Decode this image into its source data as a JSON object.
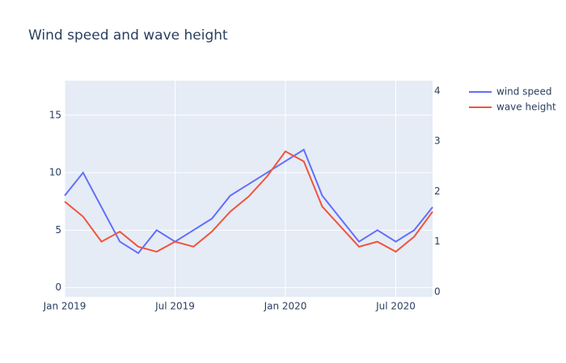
{
  "chart_data": {
    "type": "line",
    "title": "Wind speed and wave height",
    "x": [
      "2019-01",
      "2019-02",
      "2019-03",
      "2019-04",
      "2019-05",
      "2019-06",
      "2019-07",
      "2019-08",
      "2019-09",
      "2019-10",
      "2019-11",
      "2019-12",
      "2020-01",
      "2020-02",
      "2020-03",
      "2020-04",
      "2020-05",
      "2020-06",
      "2020-07",
      "2020-08",
      "2020-09"
    ],
    "series": [
      {
        "name": "wind speed",
        "color": "#636efa",
        "values": [
          8,
          10,
          7,
          4,
          3,
          5,
          4,
          5,
          6,
          8,
          9,
          10,
          11,
          12,
          8,
          6,
          4,
          5,
          4,
          5,
          7
        ]
      },
      {
        "name": "wave height",
        "color": "#ef553b",
        "axis": "y2",
        "values": [
          1.8,
          1.5,
          1.0,
          1.2,
          0.9,
          0.8,
          1.0,
          0.9,
          1.2,
          1.6,
          1.9,
          2.3,
          2.8,
          2.6,
          1.7,
          1.3,
          0.9,
          1.0,
          0.8,
          1.1,
          1.6
        ]
      }
    ],
    "xlim": [
      "2019-01",
      "2020-09"
    ],
    "xticks": [
      {
        "value": "2019-01",
        "label": "Jan 2019"
      },
      {
        "value": "2019-07",
        "label": "Jul 2019"
      },
      {
        "value": "2020-01",
        "label": "Jan 2020"
      },
      {
        "value": "2020-07",
        "label": "Jul 2020"
      }
    ],
    "ylim": [
      -0.8,
      18
    ],
    "yticks": [
      0,
      5,
      10,
      15
    ],
    "y2lim": [
      -0.1,
      4.21
    ],
    "y2ticks": [
      0,
      1,
      2,
      3,
      4
    ],
    "grid": true,
    "legend": "top-right",
    "background": "#e5ecf6"
  }
}
